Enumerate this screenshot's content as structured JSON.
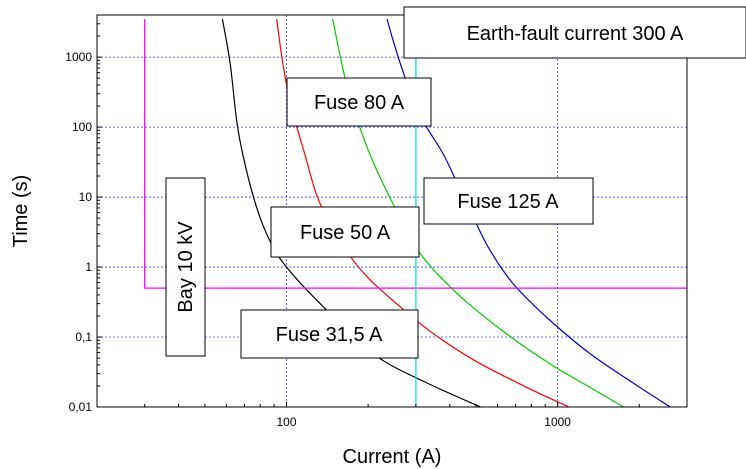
{
  "chart_data": {
    "type": "line",
    "xlabel": "Current (A)",
    "ylabel": "Time (s)",
    "x_scale": "log",
    "y_scale": "log",
    "xlim": [
      20,
      3000
    ],
    "ylim": [
      0.01,
      4000
    ],
    "grid": true,
    "x_ticks": [
      {
        "value": 100,
        "label": "100"
      },
      {
        "value": 1000,
        "label": "1000"
      }
    ],
    "y_ticks": [
      {
        "value": 0.01,
        "label": "0,01"
      },
      {
        "value": 0.1,
        "label": "0,1"
      },
      {
        "value": 1,
        "label": "1"
      },
      {
        "value": 10,
        "label": "10"
      },
      {
        "value": 100,
        "label": "100"
      },
      {
        "value": 1000,
        "label": "1000"
      }
    ],
    "series": [
      {
        "name": "Fuse 31,5 A",
        "color": "#000000",
        "points": [
          [
            58,
            3500
          ],
          [
            62,
            800
          ],
          [
            66,
            100
          ],
          [
            72,
            20
          ],
          [
            80,
            5
          ],
          [
            90,
            1.8
          ],
          [
            100,
            1.0
          ],
          [
            120,
            0.45
          ],
          [
            160,
            0.15
          ],
          [
            220,
            0.05
          ],
          [
            330,
            0.022
          ],
          [
            520,
            0.01
          ]
        ]
      },
      {
        "name": "Fuse 50 A",
        "color": "#ff0000",
        "points": [
          [
            92,
            3500
          ],
          [
            97,
            800
          ],
          [
            104,
            200
          ],
          [
            117,
            40
          ],
          [
            130,
            10
          ],
          [
            150,
            3.2
          ],
          [
            170,
            1.5
          ],
          [
            200,
            0.7
          ],
          [
            260,
            0.28
          ],
          [
            350,
            0.11
          ],
          [
            500,
            0.045
          ],
          [
            750,
            0.02
          ],
          [
            1100,
            0.01
          ]
        ]
      },
      {
        "name": "Fuse 80 A",
        "color": "#00cc00",
        "points": [
          [
            148,
            3500
          ],
          [
            158,
            1000
          ],
          [
            170,
            300
          ],
          [
            190,
            80
          ],
          [
            210,
            30
          ],
          [
            240,
            10
          ],
          [
            280,
            3.2
          ],
          [
            310,
            1.6
          ],
          [
            360,
            0.8
          ],
          [
            460,
            0.32
          ],
          [
            650,
            0.11
          ],
          [
            950,
            0.04
          ],
          [
            1350,
            0.018
          ],
          [
            1750,
            0.01
          ]
        ]
      },
      {
        "name": "Fuse 125 A",
        "color": "#0000cc",
        "points": [
          [
            235,
            3500
          ],
          [
            250,
            1500
          ],
          [
            280,
            400
          ],
          [
            320,
            120
          ],
          [
            380,
            40
          ],
          [
            440,
            12
          ],
          [
            490,
            5
          ],
          [
            560,
            1.8
          ],
          [
            680,
            0.6
          ],
          [
            900,
            0.2
          ],
          [
            1300,
            0.06
          ],
          [
            1900,
            0.022
          ],
          [
            2600,
            0.01
          ]
        ]
      },
      {
        "name": "Bay 10 kV",
        "color": "#ff00ff",
        "points": [
          [
            30,
            3500
          ],
          [
            30,
            0.5
          ],
          [
            3000,
            0.5
          ]
        ]
      },
      {
        "name": "Earth-fault current 300 A",
        "color": "#00e5e5",
        "points": [
          [
            300,
            0.01
          ],
          [
            300,
            4000
          ]
        ]
      }
    ],
    "annotations": [
      {
        "text": "Earth-fault current 300 A",
        "series": 5
      },
      {
        "text": "Fuse 80 A",
        "series": 2
      },
      {
        "text": "Fuse 125 A",
        "series": 3
      },
      {
        "text": "Fuse 50 A",
        "series": 1
      },
      {
        "text": "Fuse 31,5 A",
        "series": 0
      },
      {
        "text": "Bay 10 kV",
        "series": 4
      }
    ]
  }
}
